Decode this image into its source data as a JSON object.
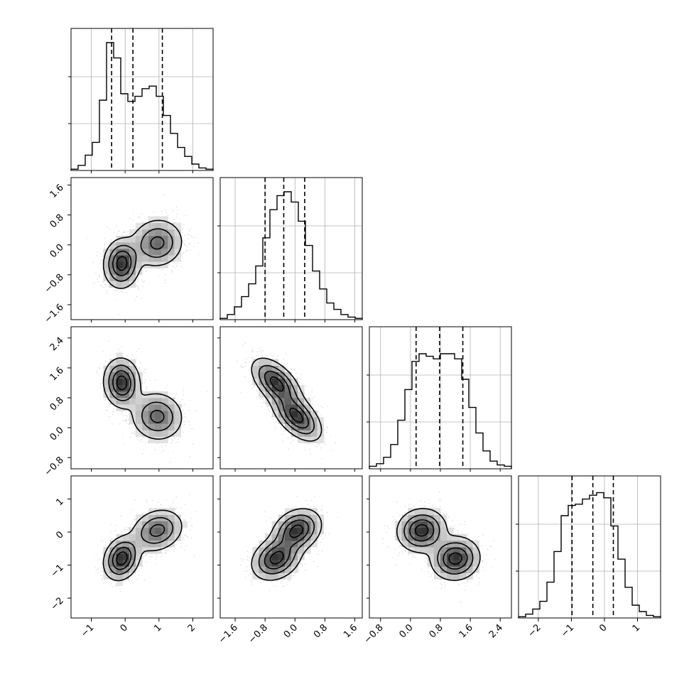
{
  "chart_data": {
    "type": "corner",
    "n_params": 4,
    "styling": {
      "hist_color": "#000000",
      "contour_color": "#000000",
      "grid": true,
      "grid_color": "#b0b0b0",
      "frame_color": "#000000",
      "point_color": "#808080"
    },
    "axes_ticks": [
      [
        -1,
        0,
        1,
        2
      ],
      [
        -1.6,
        -0.8,
        0.0,
        0.8,
        1.6
      ],
      [
        -0.8,
        0.0,
        0.8,
        1.6,
        2.4
      ],
      [
        -2,
        -1,
        0,
        1
      ]
    ],
    "axes_tick_labels": [
      [
        "−1",
        "0",
        "1",
        "2"
      ],
      [
        "−1.6",
        "−0.8",
        "0.0",
        "0.8",
        "1.6"
      ],
      [
        "−0.8",
        "0.0",
        "0.8",
        "1.6",
        "2.4"
      ],
      [
        "−2",
        "−1",
        "0",
        "1"
      ]
    ],
    "ranges": [
      [
        -1.6,
        2.6
      ],
      [
        -2.0,
        1.8
      ],
      [
        -1.1,
        2.7
      ],
      [
        -2.6,
        1.7
      ]
    ],
    "quantiles": [
      [
        -0.4,
        0.23,
        1.1
      ],
      [
        -0.8,
        -0.3,
        0.26
      ],
      [
        0.15,
        0.78,
        1.4
      ],
      [
        -0.98,
        -0.35,
        0.27
      ]
    ],
    "modes": [
      {
        "weight": 0.5,
        "mean": [
          -0.1,
          -0.5,
          1.2,
          -0.8
        ],
        "sd": [
          0.26,
          0.32,
          0.32,
          0.32
        ]
      },
      {
        "weight": 0.5,
        "mean": [
          0.95,
          0.05,
          0.3,
          0.05
        ],
        "sd": [
          0.38,
          0.32,
          0.32,
          0.32
        ]
      }
    ],
    "correlations": {
      "1-0": 0.05,
      "2-0": -0.05,
      "3-0": 0.2,
      "2-1": -0.55,
      "3-1": 0.25,
      "3-2": 0.05
    },
    "histograms": [
      [
        0.01,
        0.04,
        0.12,
        0.22,
        0.55,
        1.0,
        0.88,
        0.6,
        0.54,
        0.58,
        0.64,
        0.66,
        0.58,
        0.43,
        0.29,
        0.18,
        0.11,
        0.05,
        0.02,
        0.01
      ],
      [
        0.01,
        0.04,
        0.1,
        0.18,
        0.28,
        0.42,
        0.64,
        0.86,
        0.97,
        1.0,
        0.92,
        0.77,
        0.58,
        0.38,
        0.24,
        0.13,
        0.08,
        0.04,
        0.02,
        0.01
      ],
      [
        0.02,
        0.04,
        0.09,
        0.19,
        0.38,
        0.62,
        0.84,
        0.9,
        0.88,
        0.86,
        0.9,
        0.9,
        0.86,
        0.7,
        0.48,
        0.28,
        0.14,
        0.06,
        0.03,
        0.02
      ],
      [
        0.01,
        0.03,
        0.07,
        0.13,
        0.28,
        0.52,
        0.8,
        0.88,
        0.89,
        0.93,
        0.96,
        0.98,
        0.94,
        0.72,
        0.46,
        0.24,
        0.1,
        0.05,
        0.02,
        0.01
      ]
    ]
  }
}
